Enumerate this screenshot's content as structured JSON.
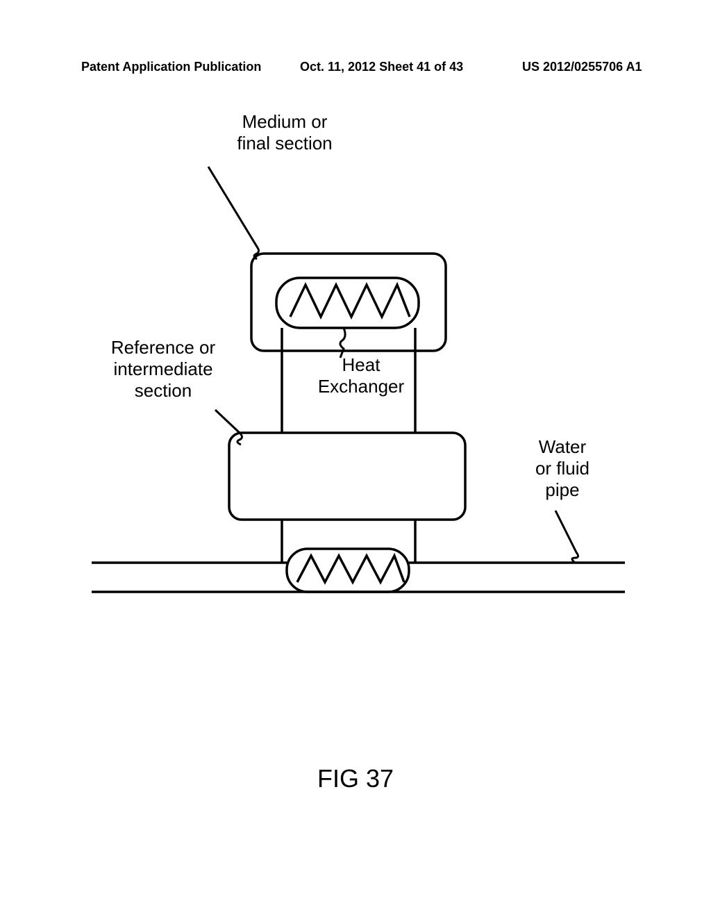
{
  "header": {
    "left": "Patent Application Publication",
    "center": "Oct. 11, 2012  Sheet 41 of 43",
    "right": "US 2012/0255706 A1"
  },
  "labels": {
    "topSection": "Medium or\nfinal section",
    "leftSection": "Reference or\nintermediate\nsection",
    "heatExchanger": "Heat\nExchanger",
    "pipe": "Water\nor fluid\npipe"
  },
  "figure": "FIG 37",
  "styling": {
    "strokeWidth": 3.5,
    "strokeColor": "#000000",
    "borderRadius": 18,
    "heatExchangerRadius": 24
  }
}
